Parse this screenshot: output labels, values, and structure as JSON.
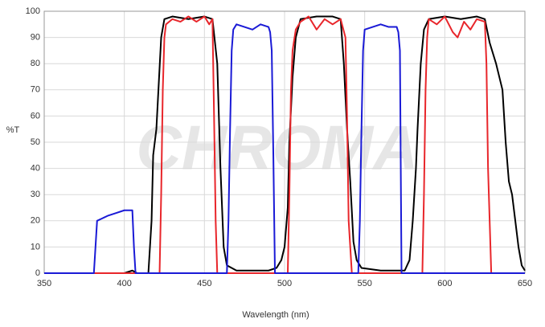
{
  "chart_data": {
    "type": "line",
    "watermark": "CHROMA",
    "x_label": "Wavelength (nm)",
    "y_label": "%T",
    "xlim": [
      350,
      650
    ],
    "xticks": [
      350,
      400,
      450,
      500,
      550,
      600,
      650
    ],
    "ylim": [
      0,
      100
    ],
    "yticks": [
      0,
      10,
      20,
      30,
      40,
      50,
      60,
      70,
      80,
      90,
      100
    ],
    "grid": true,
    "series": [
      {
        "color": "#000000",
        "x": [
          350,
          370,
          400,
          405,
          408,
          415,
          417,
          418,
          420,
          423,
          425,
          430,
          440,
          450,
          455,
          458,
          460,
          462,
          464,
          470,
          490,
          495,
          498,
          500,
          502,
          503,
          505,
          507,
          510,
          520,
          530,
          535,
          537,
          539,
          541,
          543,
          545,
          548,
          560,
          575,
          578,
          580,
          582,
          583,
          585,
          587,
          590,
          600,
          610,
          620,
          625,
          628,
          632,
          636,
          638,
          640,
          642,
          644,
          646,
          648,
          650
        ],
        "values": [
          0,
          0,
          0,
          1,
          0,
          0,
          20,
          45,
          55,
          90,
          97,
          98,
          97,
          98,
          97,
          80,
          40,
          10,
          3,
          1,
          1,
          2,
          5,
          10,
          25,
          50,
          75,
          90,
          97,
          98,
          98,
          97,
          80,
          55,
          35,
          12,
          5,
          2,
          1,
          1,
          5,
          20,
          40,
          55,
          80,
          93,
          97,
          98,
          97,
          98,
          97,
          88,
          80,
          70,
          50,
          35,
          30,
          20,
          10,
          3,
          1
        ]
      },
      {
        "color": "#e8262b",
        "x": [
          350,
          422,
          423,
          424,
          425,
          426,
          430,
          435,
          440,
          445,
          450,
          453,
          455,
          456,
          457,
          458,
          502,
          503,
          504,
          505,
          507,
          510,
          515,
          520,
          525,
          530,
          535,
          538,
          539,
          540,
          542,
          586,
          587,
          588,
          589,
          590,
          595,
          600,
          605,
          608,
          612,
          616,
          620,
          625,
          626,
          627,
          629,
          650
        ],
        "values": [
          0,
          0,
          30,
          70,
          90,
          95,
          97,
          96,
          98,
          96,
          98,
          95,
          97,
          60,
          20,
          0,
          0,
          30,
          70,
          85,
          93,
          96,
          98,
          93,
          97,
          95,
          97,
          90,
          60,
          20,
          0,
          0,
          30,
          70,
          90,
          97,
          95,
          98,
          92,
          90,
          96,
          93,
          97,
          96,
          80,
          40,
          0,
          0
        ]
      },
      {
        "color": "#1a1ad6",
        "x": [
          350,
          381,
          382,
          383,
          390,
          395,
          400,
          405,
          406,
          407,
          464,
          465,
          466,
          467,
          468,
          470,
          475,
          480,
          485,
          490,
          491,
          492,
          493,
          494,
          546,
          547,
          548,
          549,
          550,
          555,
          560,
          565,
          570,
          571,
          572,
          573,
          650
        ],
        "values": [
          0,
          0,
          10,
          20,
          22,
          23,
          24,
          24,
          10,
          0,
          0,
          20,
          55,
          85,
          93,
          95,
          94,
          93,
          95,
          94,
          92,
          85,
          45,
          0,
          0,
          20,
          55,
          85,
          93,
          94,
          95,
          94,
          94,
          92,
          85,
          0,
          0
        ]
      }
    ]
  }
}
